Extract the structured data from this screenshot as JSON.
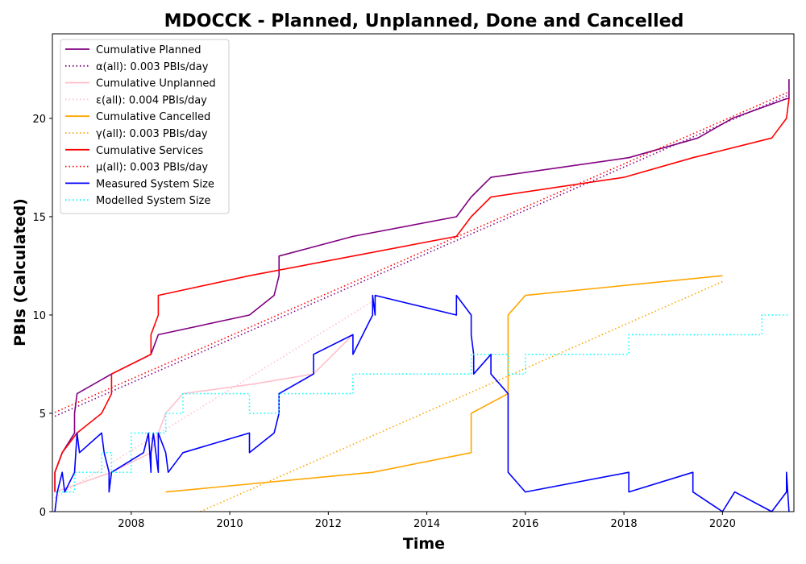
{
  "chart_data": {
    "type": "line",
    "title": "MDOCCK - Planned, Unplanned, Done  and Cancelled",
    "xlabel": "Time",
    "ylabel": "PBIs (Calculated)",
    "xlim": [
      2006.4,
      2021.45
    ],
    "ylim": [
      0,
      24.3
    ],
    "xticks": [
      2008,
      2010,
      2012,
      2014,
      2016,
      2018,
      2020
    ],
    "yticks": [
      0,
      5,
      10,
      15,
      20
    ],
    "grid": false,
    "legend_position": "top-left",
    "series": [
      {
        "name": "Cumulative Planned",
        "color": "#800080",
        "style": "solid",
        "x": [
          2006.45,
          2006.45,
          2006.6,
          2006.85,
          2006.85,
          2006.9,
          2007.6,
          2008.4,
          2008.4,
          2008.55,
          2010.4,
          2010.9,
          2011.0,
          2011.0,
          2012.5,
          2014.6,
          2014.9,
          2015.3,
          2018.1,
          2019.5,
          2020.2,
          2021.3,
          2021.35,
          2021.35
        ],
        "y": [
          1,
          2,
          3,
          4,
          5,
          6,
          7,
          8,
          8,
          9,
          10,
          11,
          12,
          13,
          14,
          15,
          16,
          17,
          18,
          19,
          20,
          21,
          21,
          22
        ]
      },
      {
        "name": "α(all): 0.003 PBIs/day",
        "color": "#800080",
        "style": "dotted",
        "x": [
          2006.45,
          2021.35
        ],
        "y": [
          4.85,
          21.2
        ]
      },
      {
        "name": "Cumulative Unplanned",
        "color": "#ffc0cb",
        "style": "solid",
        "x": [
          2006.45,
          2007.6,
          2008.4,
          2008.7,
          2009.05,
          2010.5,
          2011.7,
          2012.5
        ],
        "y": [
          1,
          2,
          3,
          5,
          6,
          6.5,
          7,
          9
        ]
      },
      {
        "name": "ε(all): 0.004 PBIs/day",
        "color": "#ffc0cb",
        "style": "dotted",
        "x": [
          2006.45,
          2012.9
        ],
        "y": [
          0.7,
          10.7
        ]
      },
      {
        "name": "Cumulative Cancelled",
        "color": "#ffa500",
        "style": "solid",
        "x": [
          2008.7,
          2012.9,
          2014.9,
          2014.9,
          2015.65,
          2015.65,
          2016.0,
          2020.0
        ],
        "y": [
          1,
          2,
          3,
          5,
          6,
          10,
          11,
          12
        ]
      },
      {
        "name": "γ(all): 0.003 PBIs/day",
        "color": "#ffa500",
        "style": "dotted",
        "x": [
          2009.4,
          2020.0
        ],
        "y": [
          0,
          11.7
        ]
      },
      {
        "name": "Cumulative Services",
        "color": "#ff0000",
        "style": "solid",
        "x": [
          2006.45,
          2006.45,
          2006.6,
          2006.9,
          2007.4,
          2007.6,
          2007.6,
          2008.4,
          2008.4,
          2008.55,
          2008.55,
          2010.4,
          2012.5,
          2014.6,
          2014.9,
          2015.3,
          2018.0,
          2019.4,
          2021.0,
          2021.3,
          2021.35
        ],
        "y": [
          1,
          2,
          3,
          4,
          5,
          6,
          7,
          8,
          9,
          10,
          11,
          12,
          13,
          14,
          15,
          16,
          17,
          18,
          19,
          20,
          21
        ]
      },
      {
        "name": "μ(all): 0.003 PBIs/day",
        "color": "#ff0000",
        "style": "dotted",
        "x": [
          2006.45,
          2021.35
        ],
        "y": [
          5.05,
          21.35
        ]
      },
      {
        "name": "Measured System Size",
        "color": "#0000ff",
        "style": "solid",
        "x": [
          2006.45,
          2006.5,
          2006.5,
          2006.6,
          2006.65,
          2006.85,
          2006.9,
          2006.95,
          2007.4,
          2007.45,
          2007.55,
          2007.55,
          2007.6,
          2008.25,
          2008.35,
          2008.4,
          2008.4,
          2008.45,
          2008.55,
          2008.55,
          2008.7,
          2008.75,
          2009.05,
          2010.4,
          2010.4,
          2010.9,
          2011.0,
          2011.0,
          2011.7,
          2011.7,
          2012.5,
          2012.5,
          2012.7,
          2012.9,
          2012.9,
          2012.95,
          2012.95,
          2014.6,
          2014.6,
          2014.9,
          2014.9,
          2014.95,
          2014.95,
          2015.3,
          2015.3,
          2015.65,
          2015.65,
          2016.0,
          2018.1,
          2018.1,
          2019.4,
          2019.4,
          2020.0,
          2020.25,
          2021.0,
          2021.3,
          2021.3,
          2021.35
        ],
        "y": [
          0,
          1,
          1,
          2,
          1,
          2,
          4,
          3,
          4,
          3,
          2,
          1,
          2,
          3,
          4,
          2,
          3,
          4,
          2,
          4,
          3,
          2,
          3,
          4,
          3,
          4,
          5,
          6,
          7,
          8,
          9,
          8,
          9,
          10,
          11,
          10,
          11,
          10,
          11,
          10,
          9,
          8,
          7,
          8,
          7,
          6,
          2,
          1,
          2,
          1,
          2,
          1,
          0,
          1,
          0,
          1,
          2,
          0
        ]
      },
      {
        "name": "Modelled System Size",
        "color": "#00ffff",
        "style": "dotted",
        "x": [
          2006.45,
          2006.85,
          2006.85,
          2007.1,
          2007.1,
          2007.4,
          2007.4,
          2007.6,
          2007.6,
          2008.0,
          2008.0,
          2008.7,
          2008.7,
          2009.05,
          2009.05,
          2010.4,
          2010.4,
          2011.0,
          2011.0,
          2011.7,
          2011.7,
          2012.5,
          2012.5,
          2012.9,
          2012.9,
          2014.6,
          2014.6,
          2014.9,
          2014.9,
          2015.65,
          2015.65,
          2016.0,
          2016.0,
          2017.0,
          2017.0,
          2018.1,
          2018.1,
          2019.4,
          2019.4,
          2019.8,
          2019.8,
          2020.0,
          2020.0,
          2020.8,
          2020.8,
          2021.35
        ],
        "y": [
          1,
          1,
          2,
          2,
          2,
          2,
          3,
          3,
          2,
          2,
          4,
          4,
          5,
          5,
          6,
          6,
          5,
          5,
          6,
          6,
          6,
          6,
          7,
          7,
          7,
          7,
          7,
          7,
          8,
          8,
          7,
          7,
          8,
          8,
          8,
          8,
          9,
          9,
          9,
          9,
          9,
          9,
          9,
          9,
          10,
          10
        ]
      }
    ]
  }
}
